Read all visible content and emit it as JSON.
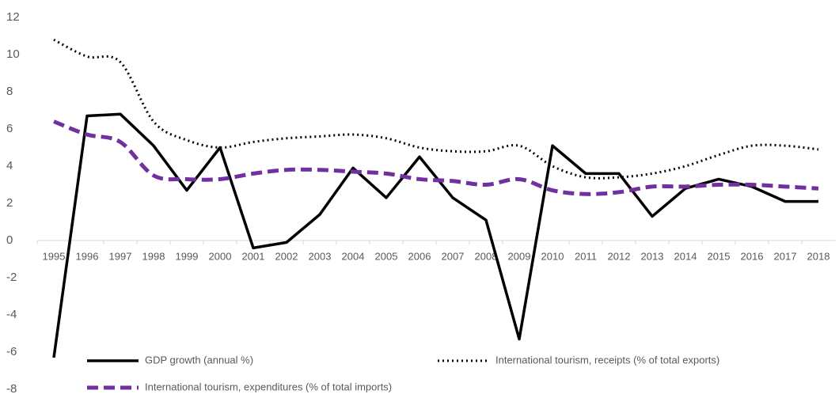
{
  "chart_data": {
    "type": "line",
    "categories": [
      "1995",
      "1996",
      "1997",
      "1998",
      "1999",
      "2000",
      "2001",
      "2002",
      "2003",
      "2004",
      "2005",
      "2006",
      "2007",
      "2008",
      "2009",
      "2010",
      "2011",
      "2012",
      "2013",
      "2014",
      "2015",
      "2016",
      "2017",
      "2018"
    ],
    "series": [
      {
        "name": "GDP growth (annual %)",
        "color": "#000000",
        "style": "solid",
        "smooth": false,
        "values": [
          -6.3,
          6.7,
          6.8,
          5.1,
          2.7,
          5.0,
          -0.4,
          -0.1,
          1.4,
          3.9,
          2.3,
          4.5,
          2.3,
          1.1,
          -5.3,
          5.1,
          3.6,
          3.6,
          1.3,
          2.8,
          3.3,
          2.9,
          2.1,
          2.1
        ]
      },
      {
        "name": "International tourism, receipts (% of total exports)",
        "color": "#000000",
        "style": "dot",
        "smooth": true,
        "values": [
          10.8,
          9.9,
          9.6,
          6.4,
          5.4,
          5.0,
          5.3,
          5.5,
          5.6,
          5.7,
          5.5,
          5.0,
          4.8,
          4.8,
          5.1,
          4.0,
          3.4,
          3.4,
          3.6,
          4.0,
          4.6,
          5.1,
          5.1,
          4.9
        ]
      },
      {
        "name": "International tourism, expenditures (% of total imports)",
        "color": "#7030a0",
        "style": "dash",
        "smooth": true,
        "values": [
          6.4,
          5.7,
          5.3,
          3.5,
          3.3,
          3.3,
          3.6,
          3.8,
          3.8,
          3.7,
          3.6,
          3.3,
          3.2,
          3.0,
          3.3,
          2.7,
          2.5,
          2.6,
          2.9,
          2.9,
          3.0,
          3.0,
          2.9,
          2.8
        ]
      }
    ],
    "ylim": [
      -8,
      12
    ],
    "yticks": [
      -8,
      -6,
      -4,
      -2,
      0,
      2,
      4,
      6,
      8,
      10,
      12
    ],
    "grid": false
  }
}
